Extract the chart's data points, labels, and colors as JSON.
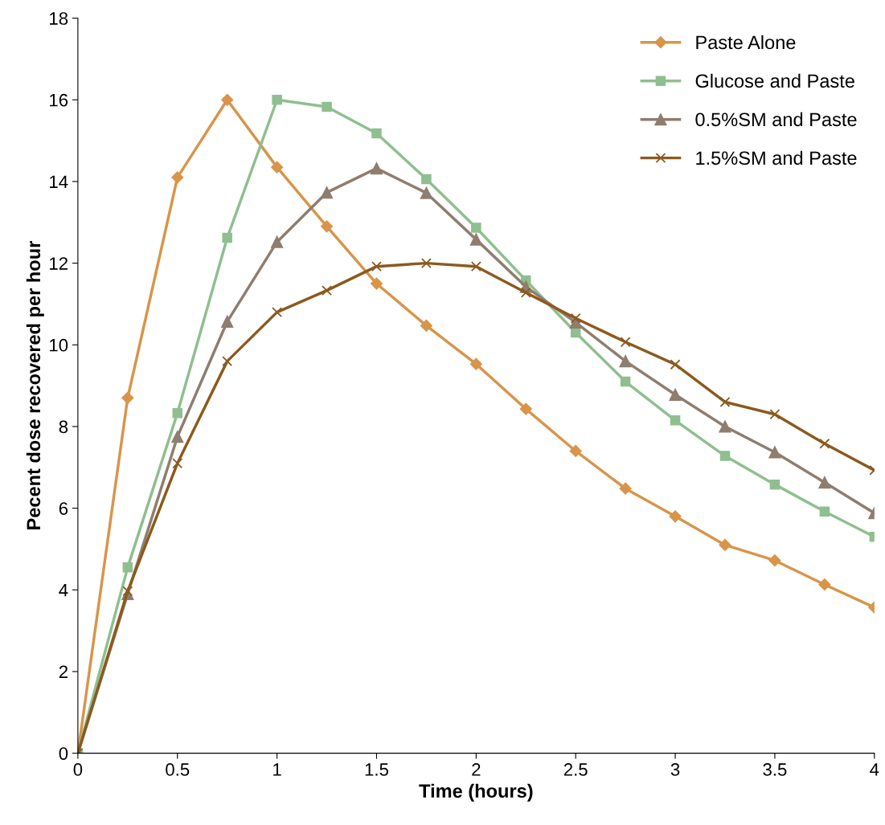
{
  "chart_data": {
    "type": "line",
    "xlabel": "Time (hours)",
    "ylabel": "Pecent dose recovered per hour",
    "x": [
      0,
      0.25,
      0.5,
      0.75,
      1,
      1.25,
      1.5,
      1.75,
      2,
      2.25,
      2.5,
      2.75,
      3,
      3.25,
      3.5,
      3.75,
      4
    ],
    "series": [
      {
        "name": "Paste Alone",
        "color": "#d8954a",
        "marker": "diamond",
        "values": [
          0,
          8.7,
          14.1,
          16.0,
          14.35,
          12.9,
          11.5,
          10.47,
          9.53,
          8.43,
          7.4,
          6.48,
          5.8,
          5.1,
          4.72,
          4.13,
          3.57
        ]
      },
      {
        "name": "Glucose and Paste",
        "color": "#8fbf8f",
        "marker": "square",
        "values": [
          0,
          4.55,
          8.33,
          12.62,
          16.0,
          15.83,
          15.18,
          14.06,
          12.87,
          11.58,
          10.3,
          9.1,
          8.15,
          7.28,
          6.58,
          5.92,
          5.3
        ]
      },
      {
        "name": "0.5%SM and Paste",
        "color": "#8f7d6f",
        "marker": "triangle",
        "values": [
          0,
          3.9,
          7.75,
          10.57,
          12.52,
          13.73,
          14.32,
          13.72,
          12.58,
          11.42,
          10.55,
          9.6,
          8.78,
          8.0,
          7.37,
          6.63,
          5.88
        ]
      },
      {
        "name": "1.5%SM and Paste",
        "color": "#8b5a1e",
        "marker": "cross",
        "values": [
          0,
          3.97,
          7.1,
          9.6,
          10.8,
          11.33,
          11.92,
          12.0,
          11.92,
          11.28,
          10.65,
          10.07,
          9.52,
          8.6,
          8.3,
          7.58,
          6.93
        ]
      }
    ],
    "xlim": [
      0,
      4
    ],
    "xticks": [
      0,
      0.5,
      1,
      1.5,
      2,
      2.5,
      3,
      3.5,
      4
    ],
    "ylim": [
      0,
      18
    ],
    "yticks": [
      0,
      2,
      4,
      6,
      8,
      10,
      12,
      14,
      16,
      18
    ],
    "grid": false,
    "legend": "top right",
    "line_style": "solid"
  }
}
